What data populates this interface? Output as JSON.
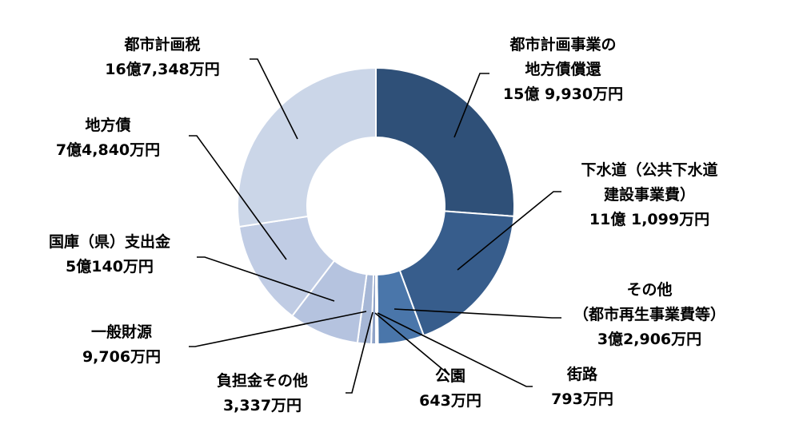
{
  "chart_data": {
    "type": "pie",
    "variant": "donut",
    "start": "12 o'clock, clockwise",
    "series": [
      {
        "categories": [
          "都市計画事業の地方債償還",
          "下水道（公共下水道建設事業費）",
          "その他（都市再生事業費等）",
          "街路",
          "公園",
          "負担金その他",
          "一般財源",
          "国庫（県）支出金",
          "地方債",
          "都市計画税"
        ],
        "values": [
          159930,
          111099,
          32906,
          793,
          643,
          3337,
          9706,
          50140,
          74840,
          167348
        ],
        "unit": "万円",
        "colors": [
          "#2f5078",
          "#375d8c",
          "#4a76aa",
          "#5b80b0",
          "#7791bb",
          "#8fa3c8",
          "#a6b7d6",
          "#b5c3df",
          "#c0cce4",
          "#cbd6e8"
        ]
      }
    ],
    "labels": [
      {
        "lines": [
          "都市計画事業の",
          "地方債償還",
          "15億 9,930万円"
        ]
      },
      {
        "lines": [
          "下水道（公共下水道",
          "建設事業費）",
          "11億 1,099万円"
        ]
      },
      {
        "lines": [
          "その他",
          "（都市再生事業費等）",
          "3億2,906万円"
        ]
      },
      {
        "lines": [
          "街路",
          "793万円"
        ]
      },
      {
        "lines": [
          "公園",
          "643万円"
        ]
      },
      {
        "lines": [
          "負担金その他",
          "3,337万円"
        ]
      },
      {
        "lines": [
          "一般財源",
          "9,706万円"
        ]
      },
      {
        "lines": [
          "国庫（県）支出金",
          "5億140万円"
        ]
      },
      {
        "lines": [
          "地方債",
          "7億4,840万円"
        ]
      },
      {
        "lines": [
          "都市計画税",
          "16億7,348万円"
        ]
      }
    ],
    "legend": "none"
  }
}
